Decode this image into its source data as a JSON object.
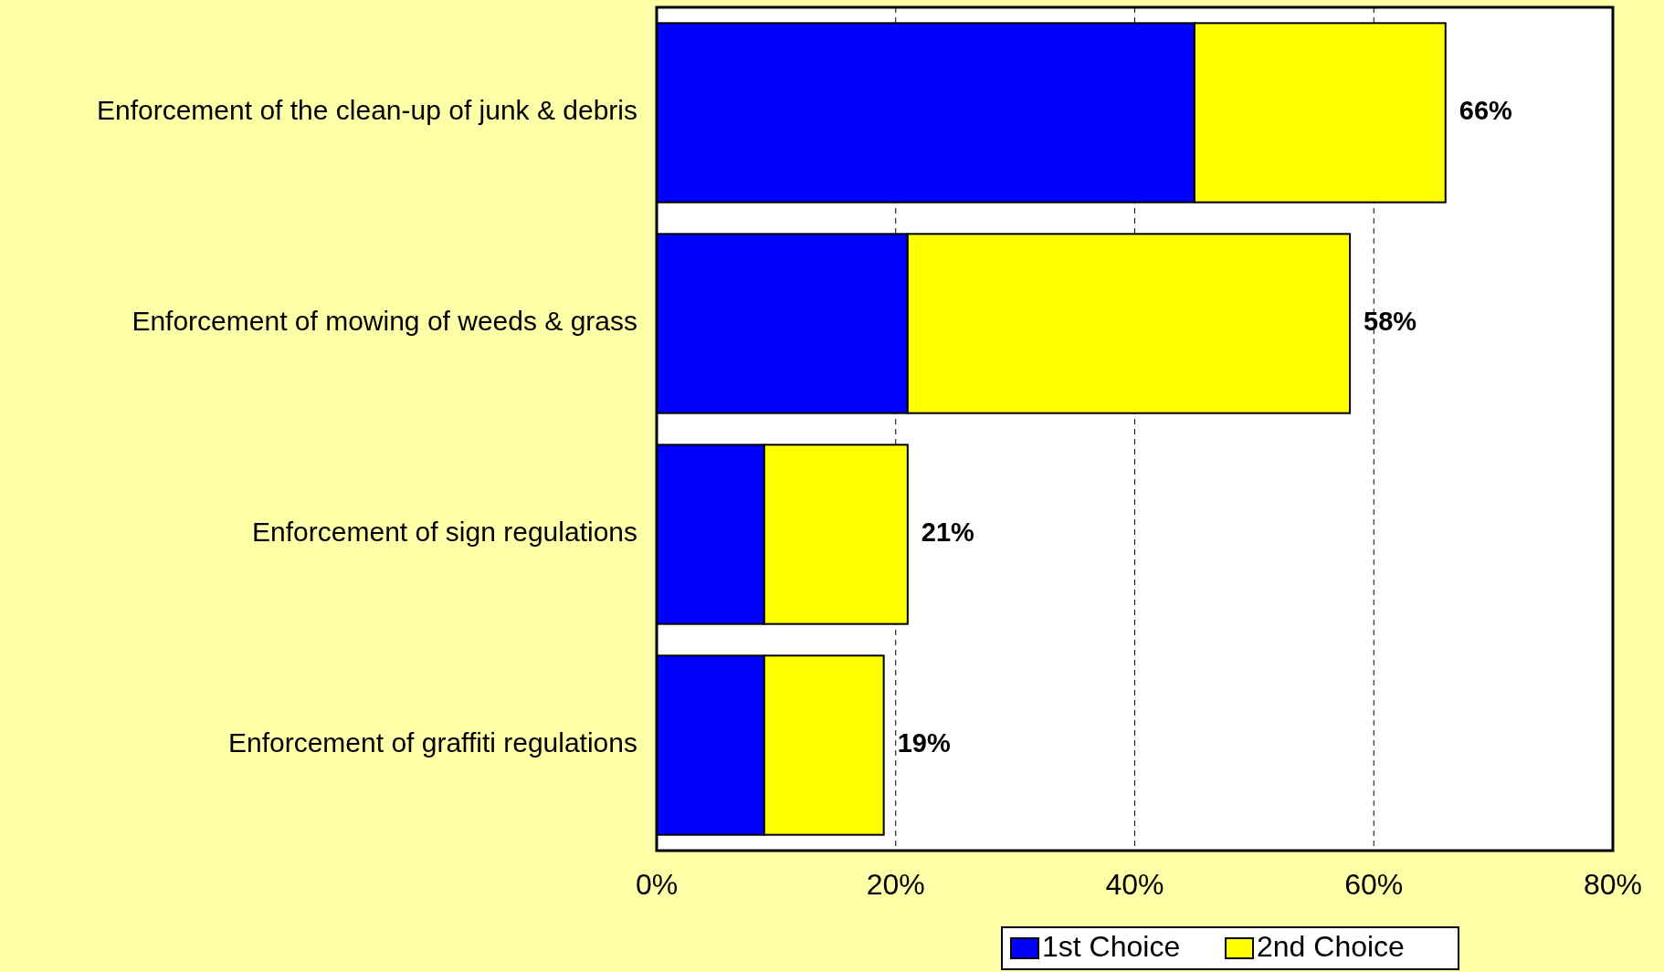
{
  "chart_data": {
    "type": "bar",
    "orientation": "horizontal",
    "stacked": true,
    "categories": [
      "Enforcement of the clean-up of junk & debris",
      "Enforcement of mowing of weeds & grass",
      "Enforcement of sign regulations",
      "Enforcement of graffiti regulations"
    ],
    "series": [
      {
        "name": "1st Choice",
        "color": "#0000ff",
        "values": [
          45,
          21,
          9,
          9
        ]
      },
      {
        "name": "2nd Choice",
        "color": "#ffff00",
        "values": [
          21,
          37,
          12,
          10
        ]
      }
    ],
    "totals": [
      "66%",
      "58%",
      "21%",
      "19%"
    ],
    "xlim": [
      0,
      80
    ],
    "xticks": [
      {
        "value": 0,
        "label": "0%"
      },
      {
        "value": 20,
        "label": "20%"
      },
      {
        "value": 40,
        "label": "40%"
      },
      {
        "value": 60,
        "label": "60%"
      },
      {
        "value": 80,
        "label": "80%"
      }
    ],
    "grid": "x",
    "legend": "bottom"
  }
}
